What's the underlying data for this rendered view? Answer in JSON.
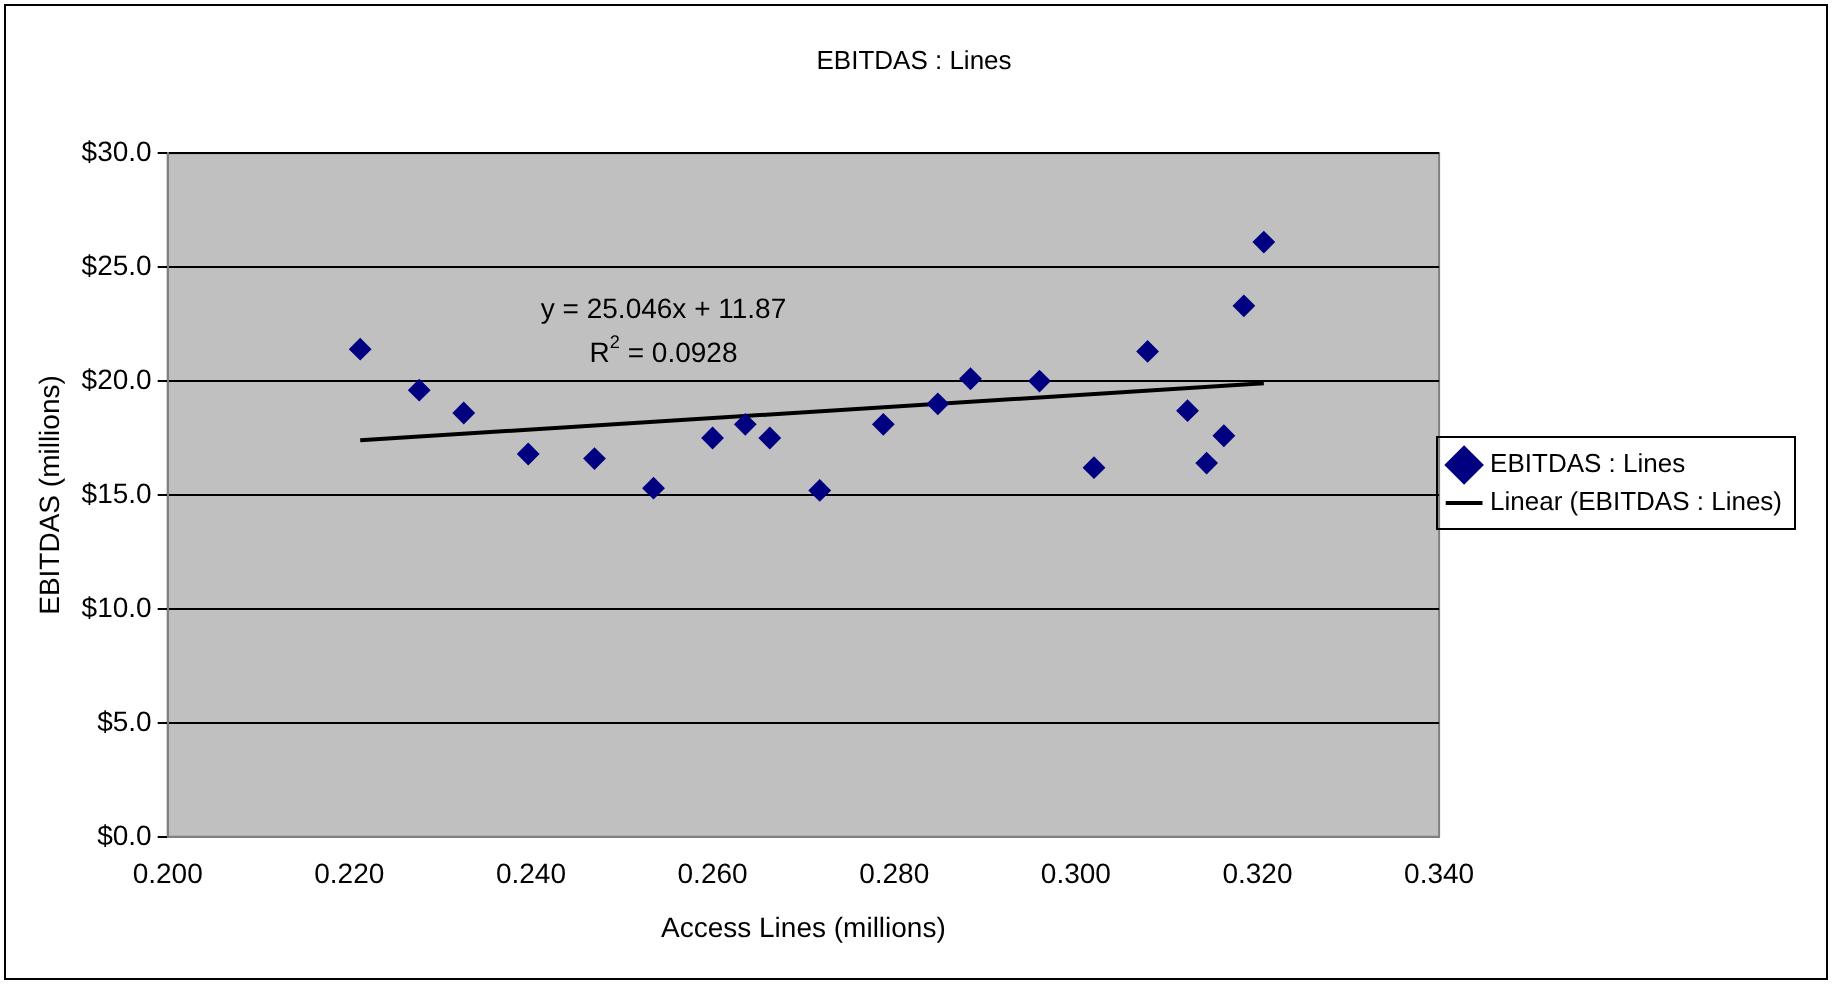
{
  "chart_data": {
    "type": "scatter",
    "title": "EBITDAS : Lines",
    "xlabel": "Access Lines (millions)",
    "ylabel": "EBITDAS (millions)",
    "xlim": [
      0.2,
      0.34
    ],
    "xticks": [
      {
        "value": 0.2,
        "label": "0.200"
      },
      {
        "value": 0.22,
        "label": "0.220"
      },
      {
        "value": 0.24,
        "label": "0.240"
      },
      {
        "value": 0.26,
        "label": "0.260"
      },
      {
        "value": 0.28,
        "label": "0.280"
      },
      {
        "value": 0.3,
        "label": "0.300"
      },
      {
        "value": 0.32,
        "label": "0.320"
      },
      {
        "value": 0.34,
        "label": "0.340"
      }
    ],
    "ylim": [
      0,
      30
    ],
    "yticks": [
      {
        "value": 0,
        "label": "$0.0"
      },
      {
        "value": 5,
        "label": "$5.0"
      },
      {
        "value": 10,
        "label": "$10.0"
      },
      {
        "value": 15,
        "label": "$15.0"
      },
      {
        "value": 20,
        "label": "$20.0"
      },
      {
        "value": 25,
        "label": "$25.0"
      },
      {
        "value": 30,
        "label": "$30.0"
      }
    ],
    "grid": "y",
    "legend": "right",
    "marker": "diamond",
    "annotations": [
      "y = 25.046x + 11.87",
      "R$^{2}$ = 0.0928"
    ],
    "series": [
      {
        "name": "EBITDAS : Lines",
        "color": "#000080",
        "x": [
          0.2212,
          0.2277,
          0.2326,
          0.2397,
          0.247,
          0.2535,
          0.26,
          0.2636,
          0.2663,
          0.2718,
          0.2788,
          0.2848,
          0.2884,
          0.296,
          0.302,
          0.3079,
          0.3123,
          0.3144,
          0.3163,
          0.3185,
          0.3207
        ],
        "values": [
          21.4,
          19.6,
          18.6,
          16.8,
          16.6,
          15.3,
          17.5,
          18.1,
          17.5,
          15.2,
          18.1,
          19.0,
          20.1,
          20.0,
          16.2,
          21.3,
          18.7,
          16.4,
          17.6,
          23.3,
          26.1
        ]
      },
      {
        "name": "Linear (EBITDAS : Lines)",
        "type": "line",
        "color": "#000000",
        "marker": "none",
        "line_style": "solid",
        "x": [
          0.2212,
          0.3207
        ],
        "values": [
          17.4,
          19.9
        ]
      }
    ]
  }
}
